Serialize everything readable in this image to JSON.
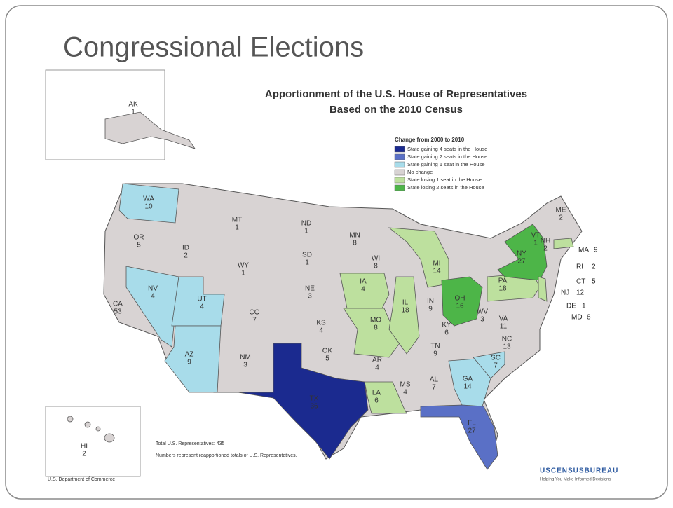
{
  "slide": {
    "title": "Congressional Elections"
  },
  "map": {
    "title": "Apportionment of the U.S. House of Representatives",
    "subtitle": "Based on the 2010 Census",
    "legend_title": "Change from 2000 to 2010",
    "legend": [
      {
        "label": "State gaining 4 seats in the House",
        "color": "#1b2a8f"
      },
      {
        "label": "State gaining 2 seats in the House",
        "color": "#5a70c6"
      },
      {
        "label": "State gaining 1 seat in the House",
        "color": "#a8dcea"
      },
      {
        "label": "No change",
        "color": "#d8d3d3"
      },
      {
        "label": "State losing 1 seat in the House",
        "color": "#bde09e"
      },
      {
        "label": "State losing 2 seats in the House",
        "color": "#4db548"
      }
    ],
    "states": [
      {
        "abbr": "AK",
        "seats": "1",
        "color": "#d8d3d3"
      },
      {
        "abbr": "HI",
        "seats": "2",
        "color": "#d8d3d3"
      },
      {
        "abbr": "WA",
        "seats": "10",
        "color": "#a8dcea"
      },
      {
        "abbr": "OR",
        "seats": "5",
        "color": "#d8d3d3"
      },
      {
        "abbr": "CA",
        "seats": "53",
        "color": "#d8d3d3"
      },
      {
        "abbr": "ID",
        "seats": "2",
        "color": "#d8d3d3"
      },
      {
        "abbr": "NV",
        "seats": "4",
        "color": "#a8dcea"
      },
      {
        "abbr": "UT",
        "seats": "4",
        "color": "#a8dcea"
      },
      {
        "abbr": "AZ",
        "seats": "9",
        "color": "#a8dcea"
      },
      {
        "abbr": "MT",
        "seats": "1",
        "color": "#d8d3d3"
      },
      {
        "abbr": "WY",
        "seats": "1",
        "color": "#d8d3d3"
      },
      {
        "abbr": "CO",
        "seats": "7",
        "color": "#d8d3d3"
      },
      {
        "abbr": "NM",
        "seats": "3",
        "color": "#d8d3d3"
      },
      {
        "abbr": "ND",
        "seats": "1",
        "color": "#d8d3d3"
      },
      {
        "abbr": "SD",
        "seats": "1",
        "color": "#d8d3d3"
      },
      {
        "abbr": "NE",
        "seats": "3",
        "color": "#d8d3d3"
      },
      {
        "abbr": "KS",
        "seats": "4",
        "color": "#d8d3d3"
      },
      {
        "abbr": "OK",
        "seats": "5",
        "color": "#d8d3d3"
      },
      {
        "abbr": "TX",
        "seats": "36",
        "color": "#1b2a8f"
      },
      {
        "abbr": "MN",
        "seats": "8",
        "color": "#d8d3d3"
      },
      {
        "abbr": "IA",
        "seats": "4",
        "color": "#bde09e"
      },
      {
        "abbr": "MO",
        "seats": "8",
        "color": "#bde09e"
      },
      {
        "abbr": "AR",
        "seats": "4",
        "color": "#d8d3d3"
      },
      {
        "abbr": "LA",
        "seats": "6",
        "color": "#bde09e"
      },
      {
        "abbr": "WI",
        "seats": "8",
        "color": "#d8d3d3"
      },
      {
        "abbr": "IL",
        "seats": "18",
        "color": "#bde09e"
      },
      {
        "abbr": "MI",
        "seats": "14",
        "color": "#bde09e"
      },
      {
        "abbr": "IN",
        "seats": "9",
        "color": "#d8d3d3"
      },
      {
        "abbr": "OH",
        "seats": "16",
        "color": "#4db548"
      },
      {
        "abbr": "KY",
        "seats": "6",
        "color": "#d8d3d3"
      },
      {
        "abbr": "TN",
        "seats": "9",
        "color": "#d8d3d3"
      },
      {
        "abbr": "MS",
        "seats": "4",
        "color": "#d8d3d3"
      },
      {
        "abbr": "AL",
        "seats": "7",
        "color": "#d8d3d3"
      },
      {
        "abbr": "GA",
        "seats": "14",
        "color": "#a8dcea"
      },
      {
        "abbr": "FL",
        "seats": "27",
        "color": "#5a70c6"
      },
      {
        "abbr": "SC",
        "seats": "7",
        "color": "#a8dcea"
      },
      {
        "abbr": "NC",
        "seats": "13",
        "color": "#d8d3d3"
      },
      {
        "abbr": "VA",
        "seats": "11",
        "color": "#d8d3d3"
      },
      {
        "abbr": "WV",
        "seats": "3",
        "color": "#d8d3d3"
      },
      {
        "abbr": "PA",
        "seats": "18",
        "color": "#bde09e"
      },
      {
        "abbr": "NY",
        "seats": "27",
        "color": "#4db548"
      },
      {
        "abbr": "ME",
        "seats": "2",
        "color": "#d8d3d3"
      },
      {
        "abbr": "VT",
        "seats": "1",
        "color": "#d8d3d3"
      },
      {
        "abbr": "NH",
        "seats": "2",
        "color": "#d8d3d3"
      },
      {
        "abbr": "MA",
        "seats": "9",
        "color": "#bde09e"
      },
      {
        "abbr": "RI",
        "seats": "2",
        "color": "#d8d3d3"
      },
      {
        "abbr": "CT",
        "seats": "5",
        "color": "#d8d3d3"
      },
      {
        "abbr": "NJ",
        "seats": "12",
        "color": "#bde09e"
      },
      {
        "abbr": "DE",
        "seats": "1",
        "color": "#d8d3d3"
      },
      {
        "abbr": "MD",
        "seats": "8",
        "color": "#d8d3d3"
      }
    ],
    "total_note": "Total U.S. Representatives: 435",
    "numbers_note": "Numbers represent reapportioned totals of U.S. Representatives.",
    "department": "U.S. Department of Commerce",
    "bureau": "USCENSUSBUREAU",
    "bureau_tagline": "Helping You Make Informed Decisions"
  }
}
